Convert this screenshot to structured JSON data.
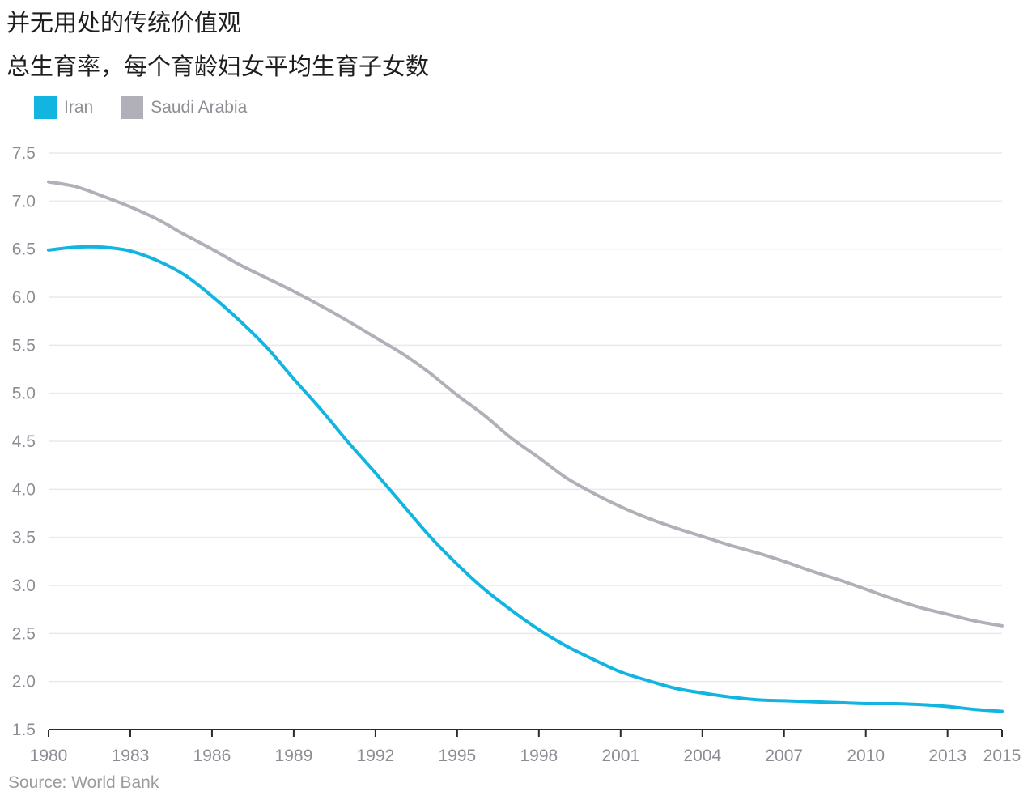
{
  "title": "并无用处的传统价值观",
  "subtitle": "总生育率，每个育龄妇女平均生育子女数",
  "source": "Source: World Bank",
  "chart_data": {
    "type": "line",
    "title": "并无用处的传统价值观",
    "subtitle": "总生育率，每个育龄妇女平均生育子女数",
    "xlabel": "",
    "ylabel": "",
    "x": [
      1980,
      1981,
      1982,
      1983,
      1984,
      1985,
      1986,
      1987,
      1988,
      1989,
      1990,
      1991,
      1992,
      1993,
      1994,
      1995,
      1996,
      1997,
      1998,
      1999,
      2000,
      2001,
      2002,
      2003,
      2004,
      2005,
      2006,
      2007,
      2008,
      2009,
      2010,
      2011,
      2012,
      2013,
      2014,
      2015
    ],
    "series": [
      {
        "name": "Iran",
        "color": "#12b5e0",
        "values": [
          6.49,
          6.52,
          6.52,
          6.48,
          6.38,
          6.23,
          6.01,
          5.76,
          5.48,
          5.15,
          4.83,
          4.49,
          4.17,
          3.84,
          3.51,
          3.22,
          2.96,
          2.74,
          2.54,
          2.37,
          2.23,
          2.1,
          2.01,
          1.93,
          1.88,
          1.84,
          1.81,
          1.8,
          1.79,
          1.78,
          1.77,
          1.77,
          1.76,
          1.74,
          1.71,
          1.69
        ]
      },
      {
        "name": "Saudi Arabia",
        "color": "#b1b0b8",
        "values": [
          7.2,
          7.15,
          7.05,
          6.94,
          6.81,
          6.65,
          6.5,
          6.34,
          6.2,
          6.06,
          5.91,
          5.75,
          5.58,
          5.41,
          5.21,
          4.98,
          4.77,
          4.53,
          4.33,
          4.12,
          3.96,
          3.82,
          3.7,
          3.6,
          3.51,
          3.42,
          3.34,
          3.25,
          3.15,
          3.06,
          2.96,
          2.86,
          2.77,
          2.7,
          2.63,
          2.58
        ]
      }
    ],
    "x_ticks": [
      "1980",
      "1983",
      "1986",
      "1989",
      "1992",
      "1995",
      "1998",
      "2001",
      "2004",
      "2007",
      "2010",
      "2013",
      "2015"
    ],
    "y_ticks": [
      "1.5",
      "2.0",
      "2.5",
      "3.0",
      "3.5",
      "4.0",
      "4.5",
      "5.0",
      "5.5",
      "6.0",
      "6.5",
      "7.0",
      "7.5"
    ],
    "xlim": [
      1980,
      2015
    ],
    "ylim": [
      1.5,
      7.5
    ],
    "grid": "horizontal",
    "legend_position": "top-left"
  }
}
